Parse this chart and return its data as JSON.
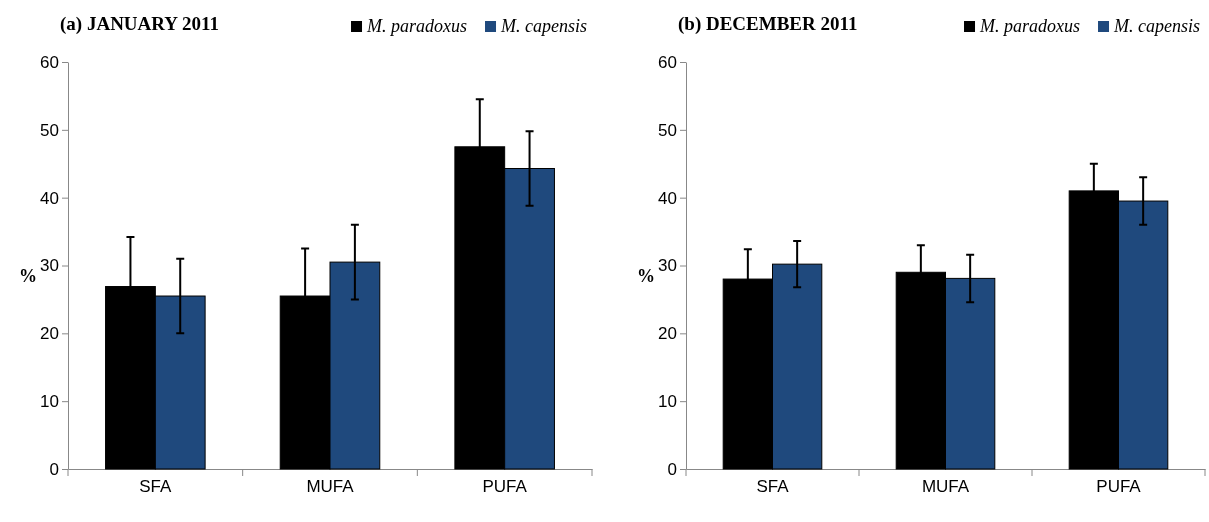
{
  "chart_data": [
    {
      "type": "bar",
      "title": "(a) JANUARY 2011",
      "ylabel": "%",
      "categories": [
        "SFA",
        "MUFA",
        "PUFA"
      ],
      "ylim": [
        0,
        60
      ],
      "yticks": [
        0,
        10,
        20,
        30,
        40,
        50,
        60
      ],
      "legend": "top right",
      "grid": false,
      "series": [
        {
          "name": "M. paradoxus",
          "color": "#000000",
          "values": [
            26.9,
            25.5,
            47.5
          ],
          "errors": [
            7.3,
            7,
            7
          ]
        },
        {
          "name": "M. capensis",
          "color": "#1f497d",
          "values": [
            25.5,
            30.5,
            44.3
          ],
          "errors": [
            5.5,
            5.5,
            5.5
          ]
        }
      ]
    },
    {
      "type": "bar",
      "title": "(b) DECEMBER 2011",
      "ylabel": "%",
      "categories": [
        "SFA",
        "MUFA",
        "PUFA"
      ],
      "ylim": [
        0,
        60
      ],
      "yticks": [
        0,
        10,
        20,
        30,
        40,
        50,
        60
      ],
      "legend": "top right",
      "grid": false,
      "series": [
        {
          "name": "M. paradoxus",
          "color": "#000000",
          "values": [
            28,
            29,
            41
          ],
          "errors": [
            4.4,
            4,
            4
          ]
        },
        {
          "name": "M. capensis",
          "color": "#1f497d",
          "values": [
            30.2,
            28.1,
            39.5
          ],
          "errors": [
            3.4,
            3.5,
            3.5
          ]
        }
      ]
    }
  ]
}
